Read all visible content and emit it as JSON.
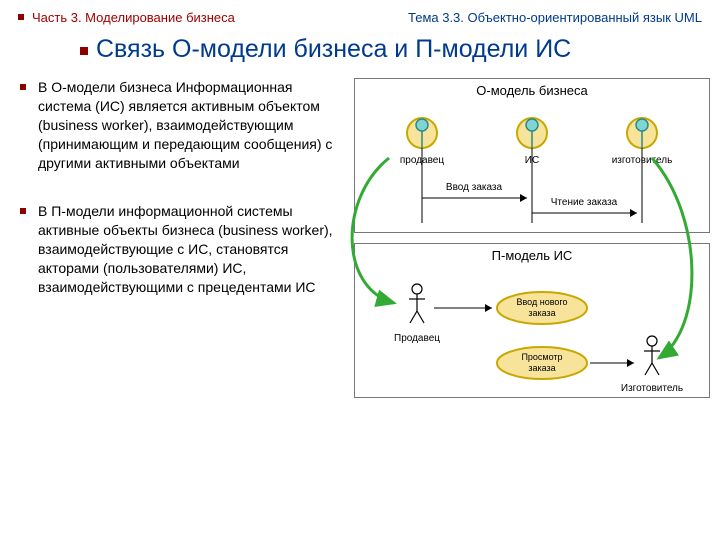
{
  "header": {
    "part": "Часть 3. Моделирование бизнеса",
    "topic": "Тема 3.3. Объектно-ориентированный язык UML",
    "part_color": "#a00000",
    "topic_color": "#003a8c"
  },
  "title": {
    "text": "Связь О-модели бизнеса и П-модели ИС",
    "color": "#003a8c"
  },
  "paragraphs": {
    "p1": "В О-модели бизнеса Информационная система (ИС) является активным объектом (business worker), взаимодействующим (принимающим и передающим сообщения) с другими активными объектами",
    "p2": "В П-модели информационной системы активные объекты бизнеса (business worker), взаимодействующие с ИС, становятся акторами (пользователями) ИС, взаимодействующими с прецедентами ИС"
  },
  "diagram": {
    "top_panel": {
      "title": "О-модель бизнеса",
      "workers": [
        {
          "label": "продавец"
        },
        {
          "label": "ИС"
        },
        {
          "label": "изготовитель"
        }
      ],
      "messages": {
        "m1": "Ввод заказа",
        "m2": "Чтение заказа"
      },
      "worker_fill": "#f7e39a",
      "worker_stroke": "#c8a800",
      "worker_ring_fill": "#7fd4d4",
      "worker_ring_stroke": "#2a8a8a"
    },
    "bottom_panel": {
      "title": "П-модель ИС",
      "actors": {
        "a1": "Продавец",
        "a2": "Изготовитель"
      },
      "usecases": {
        "u1": "Ввод нового заказа",
        "u2": "Просмотр заказа"
      },
      "usecase_fill": "#f7e39a",
      "usecase_stroke": "#c8a800"
    },
    "curve_color": "#33aa33",
    "arrow_color": "#000000"
  }
}
